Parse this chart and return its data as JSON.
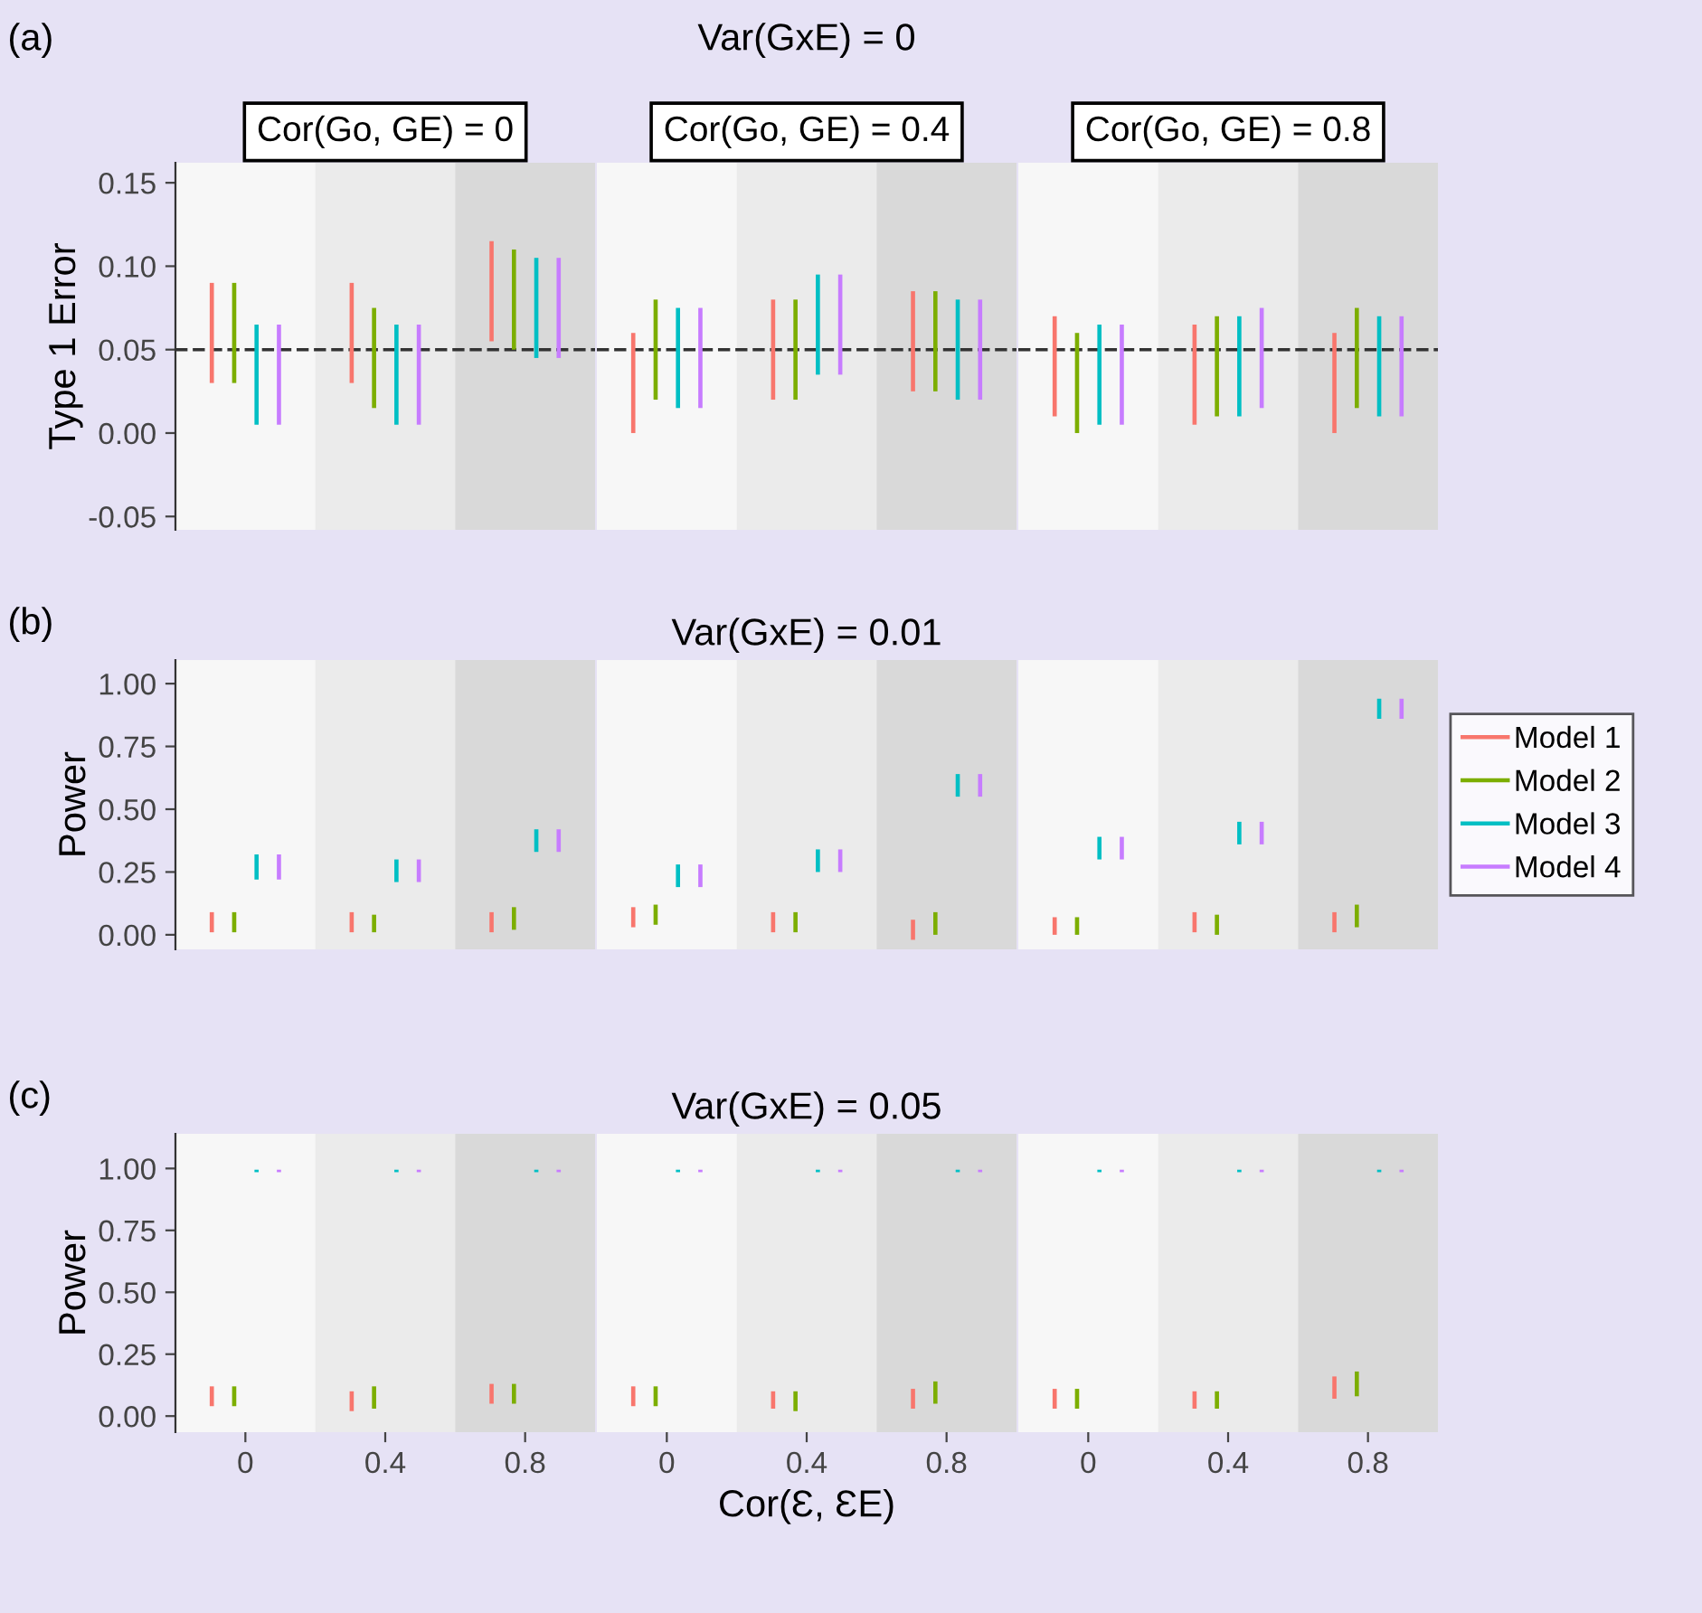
{
  "chart_data": [
    {
      "type": "bar",
      "title": "Cor(Go, GE) = 0",
      "annotations": [
        "(a)"
      ],
      "ylabel": "Type 1 Error",
      "categories": [
        "0",
        "0.4",
        "0.8"
      ],
      "tick_labels": "y",
      "grid": false,
      "legend": false,
      "ylim": [
        -0.058,
        0.162
      ],
      "yticks": [
        {
          "value": -0.05,
          "label": "-0.05"
        },
        {
          "value": 0,
          "label": "0.00"
        },
        {
          "value": 0.05,
          "label": "0.05"
        },
        {
          "value": 0.1,
          "label": "0.10"
        },
        {
          "value": 0.15,
          "label": "0.15"
        }
      ],
      "ref_lines": [
        {
          "axis": "y",
          "value": 0.05,
          "color": "#333333",
          "line_style": "dashed"
        }
      ],
      "bands": [
        {
          "axis": "x",
          "from": "0.4",
          "to": "0.4",
          "color": "#ebebeb"
        },
        {
          "axis": "x",
          "from": "0.8",
          "to": "0.8",
          "color": "#d9d9d9"
        }
      ],
      "series": [
        {
          "color": "#f8766d",
          "base": [
            0.03,
            0.03,
            0.055
          ],
          "values": [
            0.06,
            0.06,
            0.06
          ]
        },
        {
          "color": "#7cae00",
          "base": [
            0.03,
            0.015,
            0.05
          ],
          "values": [
            0.06,
            0.06,
            0.06
          ]
        },
        {
          "color": "#00bfc4",
          "base": [
            0.005,
            0.005,
            0.045
          ],
          "values": [
            0.06,
            0.06,
            0.06
          ]
        },
        {
          "color": "#c77cff",
          "base": [
            0.005,
            0.005,
            0.045
          ],
          "values": [
            0.06,
            0.06,
            0.06
          ]
        }
      ]
    },
    {
      "type": "bar",
      "title": "Cor(Go, GE) = 0.4",
      "annotations": [
        "Var(GxE) = 0"
      ],
      "categories": [
        "0",
        "0.4",
        "0.8"
      ],
      "tick_labels": false,
      "grid": false,
      "legend": false,
      "ylim": [
        -0.058,
        0.162
      ],
      "ref_lines": [
        {
          "axis": "y",
          "value": 0.05,
          "color": "#333333",
          "line_style": "dashed"
        }
      ],
      "bands": [
        {
          "axis": "x",
          "from": "0.4",
          "to": "0.4",
          "color": "#ebebeb"
        },
        {
          "axis": "x",
          "from": "0.8",
          "to": "0.8",
          "color": "#d9d9d9"
        }
      ],
      "series": [
        {
          "color": "#f8766d",
          "base": [
            0,
            0.02,
            0.025
          ],
          "values": [
            0.06,
            0.06,
            0.06
          ]
        },
        {
          "color": "#7cae00",
          "base": [
            0.02,
            0.02,
            0.025
          ],
          "values": [
            0.06,
            0.06,
            0.06
          ]
        },
        {
          "color": "#00bfc4",
          "base": [
            0.015,
            0.035,
            0.02
          ],
          "values": [
            0.06,
            0.06,
            0.06
          ]
        },
        {
          "color": "#c77cff",
          "base": [
            0.015,
            0.035,
            0.02
          ],
          "values": [
            0.06,
            0.06,
            0.06
          ]
        }
      ]
    },
    {
      "type": "bar",
      "title": "Cor(Go, GE) = 0.8",
      "categories": [
        "0",
        "0.4",
        "0.8"
      ],
      "tick_labels": false,
      "grid": false,
      "legend": false,
      "ylim": [
        -0.058,
        0.162
      ],
      "ref_lines": [
        {
          "axis": "y",
          "value": 0.05,
          "color": "#333333",
          "line_style": "dashed"
        }
      ],
      "bands": [
        {
          "axis": "x",
          "from": "0.4",
          "to": "0.4",
          "color": "#ebebeb"
        },
        {
          "axis": "x",
          "from": "0.8",
          "to": "0.8",
          "color": "#d9d9d9"
        }
      ],
      "series": [
        {
          "color": "#f8766d",
          "base": [
            0.01,
            0.005,
            0
          ],
          "values": [
            0.06,
            0.06,
            0.06
          ]
        },
        {
          "color": "#7cae00",
          "base": [
            0,
            0.01,
            0.015
          ],
          "values": [
            0.06,
            0.06,
            0.06
          ]
        },
        {
          "color": "#00bfc4",
          "base": [
            0.005,
            0.01,
            0.01
          ],
          "values": [
            0.06,
            0.06,
            0.06
          ]
        },
        {
          "color": "#c77cff",
          "base": [
            0.005,
            0.015,
            0.01
          ],
          "values": [
            0.06,
            0.06,
            0.06
          ]
        }
      ]
    },
    {
      "type": "bar",
      "annotations": [
        "(b)"
      ],
      "ylabel": "Power",
      "categories": [
        "0",
        "0.4",
        "0.8"
      ],
      "tick_labels": "y",
      "grid": false,
      "legend": false,
      "ylim": [
        -0.058,
        1.094
      ],
      "yticks": [
        {
          "value": 0,
          "label": "0.00"
        },
        {
          "value": 0.25,
          "label": "0.25"
        },
        {
          "value": 0.5,
          "label": "0.50"
        },
        {
          "value": 0.75,
          "label": "0.75"
        },
        {
          "value": 1,
          "label": "1.00"
        }
      ],
      "bands": [
        {
          "axis": "x",
          "from": "0.4",
          "to": "0.4",
          "color": "#ebebeb"
        },
        {
          "axis": "x",
          "from": "0.8",
          "to": "0.8",
          "color": "#d9d9d9"
        }
      ],
      "series": [
        {
          "color": "#f8766d",
          "base": [
            0.01,
            0.01,
            0.01
          ],
          "values": [
            0.08,
            0.08,
            0.08
          ]
        },
        {
          "color": "#7cae00",
          "base": [
            0.01,
            0.01,
            0.02
          ],
          "values": [
            0.08,
            0.07,
            0.09
          ]
        },
        {
          "color": "#00bfc4",
          "base": [
            0.22,
            0.21,
            0.33
          ],
          "values": [
            0.1,
            0.09,
            0.09
          ]
        },
        {
          "color": "#c77cff",
          "base": [
            0.22,
            0.21,
            0.33
          ],
          "values": [
            0.1,
            0.09,
            0.09
          ]
        }
      ]
    },
    {
      "type": "bar",
      "title": "Var(GxE) = 0.01",
      "categories": [
        "0",
        "0.4",
        "0.8"
      ],
      "tick_labels": false,
      "grid": false,
      "legend": false,
      "ylim": [
        -0.058,
        1.094
      ],
      "bands": [
        {
          "axis": "x",
          "from": "0.4",
          "to": "0.4",
          "color": "#ebebeb"
        },
        {
          "axis": "x",
          "from": "0.8",
          "to": "0.8",
          "color": "#d9d9d9"
        }
      ],
      "series": [
        {
          "color": "#f8766d",
          "base": [
            0.03,
            0.01,
            -0.02
          ],
          "values": [
            0.08,
            0.08,
            0.08
          ]
        },
        {
          "color": "#7cae00",
          "base": [
            0.04,
            0.01,
            0
          ],
          "values": [
            0.08,
            0.08,
            0.09
          ]
        },
        {
          "color": "#00bfc4",
          "base": [
            0.19,
            0.25,
            0.55
          ],
          "values": [
            0.09,
            0.09,
            0.09
          ]
        },
        {
          "color": "#c77cff",
          "base": [
            0.19,
            0.25,
            0.55
          ],
          "values": [
            0.09,
            0.09,
            0.09
          ]
        }
      ]
    },
    {
      "type": "bar",
      "categories": [
        "0",
        "0.4",
        "0.8"
      ],
      "tick_labels": false,
      "grid": false,
      "legend": "right",
      "ylim": [
        -0.058,
        1.094
      ],
      "bands": [
        {
          "axis": "x",
          "from": "0.4",
          "to": "0.4",
          "color": "#ebebeb"
        },
        {
          "axis": "x",
          "from": "0.8",
          "to": "0.8",
          "color": "#d9d9d9"
        }
      ],
      "series": [
        {
          "name": "Model 1",
          "color": "#f8766d",
          "base": [
            0,
            0.01,
            0.01
          ],
          "values": [
            0.07,
            0.08,
            0.08
          ]
        },
        {
          "name": "Model 2",
          "color": "#7cae00",
          "base": [
            0,
            0,
            0.03
          ],
          "values": [
            0.07,
            0.08,
            0.09
          ]
        },
        {
          "name": "Model 3",
          "color": "#00bfc4",
          "base": [
            0.3,
            0.36,
            0.86
          ],
          "values": [
            0.09,
            0.09,
            0.08
          ]
        },
        {
          "name": "Model 4",
          "color": "#c77cff",
          "base": [
            0.3,
            0.36,
            0.86
          ],
          "values": [
            0.09,
            0.09,
            0.08
          ]
        }
      ]
    },
    {
      "type": "bar",
      "annotations": [
        "(c)"
      ],
      "ylabel": "Power",
      "categories": [
        "0",
        "0.4",
        "0.8"
      ],
      "grid": false,
      "legend": false,
      "ylim": [
        -0.065,
        1.14
      ],
      "yticks": [
        {
          "value": 0,
          "label": "0.00"
        },
        {
          "value": 0.25,
          "label": "0.25"
        },
        {
          "value": 0.5,
          "label": "0.50"
        },
        {
          "value": 0.75,
          "label": "0.75"
        },
        {
          "value": 1,
          "label": "1.00"
        }
      ],
      "bands": [
        {
          "axis": "x",
          "from": "0.4",
          "to": "0.4",
          "color": "#ebebeb"
        },
        {
          "axis": "x",
          "from": "0.8",
          "to": "0.8",
          "color": "#d9d9d9"
        }
      ],
      "series": [
        {
          "color": "#f8766d",
          "base": [
            0.04,
            0.02,
            0.05
          ],
          "values": [
            0.08,
            0.08,
            0.08
          ]
        },
        {
          "color": "#7cae00",
          "base": [
            0.04,
            0.03,
            0.05
          ],
          "values": [
            0.08,
            0.09,
            0.08
          ]
        },
        {
          "color": "#00bfc4",
          "base": [
            0.985,
            0.985,
            0.985
          ],
          "values": [
            0.01,
            0.01,
            0.01
          ]
        },
        {
          "color": "#c77cff",
          "base": [
            0.985,
            0.985,
            0.985
          ],
          "values": [
            0.01,
            0.01,
            0.01
          ]
        }
      ]
    },
    {
      "type": "bar",
      "title": "Var(GxE) = 0.05",
      "xlabel": "Cor(Ɛ, ƐE)",
      "categories": [
        "0",
        "0.4",
        "0.8"
      ],
      "tick_labels": "x",
      "grid": false,
      "legend": false,
      "ylim": [
        -0.065,
        1.14
      ],
      "bands": [
        {
          "axis": "x",
          "from": "0.4",
          "to": "0.4",
          "color": "#ebebeb"
        },
        {
          "axis": "x",
          "from": "0.8",
          "to": "0.8",
          "color": "#d9d9d9"
        }
      ],
      "series": [
        {
          "color": "#f8766d",
          "base": [
            0.04,
            0.03,
            0.03
          ],
          "values": [
            0.08,
            0.07,
            0.08
          ]
        },
        {
          "color": "#7cae00",
          "base": [
            0.04,
            0.02,
            0.05
          ],
          "values": [
            0.08,
            0.08,
            0.09
          ]
        },
        {
          "color": "#00bfc4",
          "base": [
            0.985,
            0.985,
            0.985
          ],
          "values": [
            0.01,
            0.01,
            0.01
          ]
        },
        {
          "color": "#c77cff",
          "base": [
            0.985,
            0.985,
            0.985
          ],
          "values": [
            0.01,
            0.01,
            0.01
          ]
        }
      ]
    },
    {
      "type": "bar",
      "categories": [
        "0",
        "0.4",
        "0.8"
      ],
      "tick_labels": "x",
      "grid": false,
      "legend": false,
      "ylim": [
        -0.065,
        1.14
      ],
      "bands": [
        {
          "axis": "x",
          "from": "0.4",
          "to": "0.4",
          "color": "#ebebeb"
        },
        {
          "axis": "x",
          "from": "0.8",
          "to": "0.8",
          "color": "#d9d9d9"
        }
      ],
      "series": [
        {
          "color": "#f8766d",
          "base": [
            0.03,
            0.03,
            0.07
          ],
          "values": [
            0.08,
            0.07,
            0.09
          ]
        },
        {
          "color": "#7cae00",
          "base": [
            0.03,
            0.03,
            0.08
          ],
          "values": [
            0.08,
            0.07,
            0.1
          ]
        },
        {
          "color": "#00bfc4",
          "base": [
            0.985,
            0.985,
            0.985
          ],
          "values": [
            0.01,
            0.01,
            0.01
          ]
        },
        {
          "color": "#c77cff",
          "base": [
            0.985,
            0.985,
            0.985
          ],
          "values": [
            0.01,
            0.01,
            0.01
          ]
        }
      ]
    }
  ]
}
